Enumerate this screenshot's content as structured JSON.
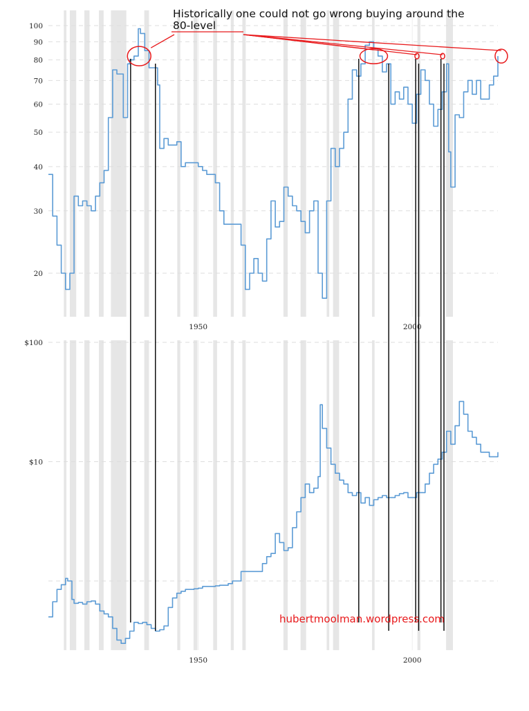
{
  "annotation": "Historically one could not go wrong buying around the 80-level",
  "watermark": "hubertmoolman.wordpress.com",
  "colors": {
    "line": "#5b9bd5",
    "recession": "#e6e6e6",
    "grid": "#dddddd",
    "annotation": "#e8191b",
    "marker": "#000000"
  },
  "recession_periods": [
    [
      1918.6,
      1919.2
    ],
    [
      1920.0,
      1921.5
    ],
    [
      1923.4,
      1924.6
    ],
    [
      1926.8,
      1927.9
    ],
    [
      1929.6,
      1933.2
    ],
    [
      1937.4,
      1938.5
    ],
    [
      1945.1,
      1945.8
    ],
    [
      1948.9,
      1949.8
    ],
    [
      1953.5,
      1954.4
    ],
    [
      1957.6,
      1958.3
    ],
    [
      1960.3,
      1961.1
    ],
    [
      1969.9,
      1970.9
    ],
    [
      1973.9,
      1975.2
    ],
    [
      1980.0,
      1980.6
    ],
    [
      1981.5,
      1982.9
    ],
    [
      1990.6,
      1991.2
    ],
    [
      2001.2,
      2001.9
    ],
    [
      2007.9,
      2009.5
    ]
  ],
  "buy_windows": [
    [
      1934.2,
      1940.0
    ],
    [
      1987.5,
      1994.5
    ],
    [
      2000.8,
      2001.5
    ],
    [
      2006.7,
      2007.4
    ]
  ],
  "chart_data": [
    {
      "type": "line",
      "scale": "log",
      "title": "",
      "xlabel": "",
      "ylabel": "",
      "xlim": [
        1915,
        2020
      ],
      "ylim": [
        16,
        108
      ],
      "y_ticks": [
        20,
        30,
        40,
        50,
        60,
        70,
        80,
        90,
        100
      ],
      "x_ticks": [
        1950,
        2000
      ],
      "series": [
        {
          "x": [
            1915.0,
            1916.0,
            1916.5,
            1917.0,
            1918.0,
            1919.0,
            1920.0,
            1921.0,
            1922.0,
            1923.0,
            1924.0,
            1925.0,
            1926.0,
            1927.0,
            1928.0,
            1929.0,
            1930.0,
            1931.0,
            1932.0,
            1932.5,
            1933.5,
            1934.0,
            1935.0,
            1936.0,
            1936.5,
            1937.5,
            1938.5,
            1939.5,
            1940.5,
            1941.0,
            1942.0,
            1943.0,
            1944.0,
            1945.0,
            1946.0,
            1947.0,
            1948.0,
            1949.0,
            1950.0,
            1951.0,
            1952.0,
            1953.0,
            1954.0,
            1955.0,
            1956.0,
            1957.0,
            1958.0,
            1959.0,
            1960.0,
            1961.0,
            1962.0,
            1963.0,
            1964.0,
            1965.0,
            1966.0,
            1967.0,
            1968.0,
            1969.0,
            1970.0,
            1971.0,
            1972.0,
            1973.0,
            1974.0,
            1975.0,
            1976.0,
            1977.0,
            1978.0,
            1979.0,
            1980.0,
            1981.0,
            1982.0,
            1983.0,
            1984.0,
            1985.0,
            1986.0,
            1987.0,
            1988.0,
            1989.0,
            1990.0,
            1991.0,
            1992.0,
            1993.0,
            1994.0,
            1995.0,
            1996.0,
            1997.0,
            1998.0,
            1999.0,
            2000.0,
            2001.0,
            2002.0,
            2003.0,
            2004.0,
            2005.0,
            2006.0,
            2007.0,
            2008.0,
            2008.5,
            2009.0,
            2010.0,
            2011.0,
            2012.0,
            2013.0,
            2014.0,
            2015.0,
            2016.0,
            2017.0,
            2018.0,
            2019.0,
            2020.0
          ],
          "y": [
            38,
            29,
            29,
            24,
            20,
            18,
            20,
            33,
            31,
            32,
            31,
            30,
            33,
            36,
            39,
            55,
            75,
            73,
            73,
            55,
            78,
            80,
            82,
            98,
            95,
            85,
            76,
            76,
            68,
            45,
            48,
            46,
            46,
            47,
            40,
            41,
            41,
            41,
            40,
            39,
            38,
            38,
            36,
            30,
            27.5,
            27.5,
            27.5,
            27.5,
            24,
            18,
            20,
            22,
            20,
            19,
            25,
            32,
            27,
            28,
            35,
            33,
            31,
            30,
            28,
            26,
            30,
            32,
            20,
            17,
            32,
            45,
            40,
            45,
            50,
            62,
            75,
            72,
            78,
            88,
            90,
            86,
            82,
            74,
            78,
            60,
            65,
            62,
            67,
            60,
            53,
            64,
            75,
            70,
            60,
            52,
            58,
            65,
            78,
            44,
            35,
            56,
            55,
            65,
            70,
            64,
            70,
            62,
            62,
            68,
            72,
            82
          ]
        }
      ]
    },
    {
      "type": "line",
      "scale": "log",
      "title": "",
      "xlabel": "",
      "ylabel": "",
      "xlim": [
        1915,
        2020
      ],
      "ylim": [
        0.28,
        100
      ],
      "y_ticks": [
        1,
        10,
        100
      ],
      "y_tick_labels": [
        "",
        "$10",
        "$100"
      ],
      "x_ticks": [
        1950,
        2000
      ],
      "series": [
        {
          "x": [
            1915.0,
            1916.0,
            1917.0,
            1918.0,
            1919.0,
            1919.5,
            1920.5,
            1921.0,
            1922.0,
            1923.0,
            1924.0,
            1925.0,
            1926.0,
            1927.0,
            1928.0,
            1929.0,
            1930.0,
            1931.0,
            1932.0,
            1933.0,
            1934.0,
            1935.0,
            1936.0,
            1937.0,
            1938.0,
            1939.0,
            1940.0,
            1941.0,
            1942.0,
            1943.0,
            1944.0,
            1945.0,
            1946.0,
            1947.0,
            1948.0,
            1949.0,
            1950.0,
            1951.0,
            1952.0,
            1953.0,
            1954.0,
            1955.0,
            1956.0,
            1957.0,
            1958.0,
            1959.0,
            1960.0,
            1961.0,
            1962.0,
            1963.0,
            1964.0,
            1965.0,
            1966.0,
            1967.0,
            1968.0,
            1969.0,
            1970.0,
            1971.0,
            1972.0,
            1973.0,
            1974.0,
            1975.0,
            1976.0,
            1977.0,
            1978.0,
            1978.5,
            1979.0,
            1980.0,
            1981.0,
            1982.0,
            1983.0,
            1984.0,
            1985.0,
            1986.0,
            1987.0,
            1988.0,
            1989.0,
            1990.0,
            1991.0,
            1992.0,
            1993.0,
            1994.0,
            1995.0,
            1996.0,
            1997.0,
            1998.0,
            1999.0,
            2000.0,
            2001.0,
            2002.0,
            2003.0,
            2004.0,
            2005.0,
            2006.0,
            2007.0,
            2008.0,
            2009.0,
            2010.0,
            2011.0,
            2012.0,
            2013.0,
            2014.0,
            2015.0,
            2016.0,
            2017.0,
            2018.0,
            2019.0,
            2020.0
          ],
          "y": [
            0.5,
            0.67,
            0.85,
            0.93,
            1.05,
            1.0,
            0.7,
            0.65,
            0.66,
            0.64,
            0.67,
            0.68,
            0.64,
            0.56,
            0.53,
            0.5,
            0.4,
            0.32,
            0.3,
            0.33,
            0.38,
            0.45,
            0.44,
            0.45,
            0.43,
            0.4,
            0.38,
            0.39,
            0.42,
            0.6,
            0.72,
            0.79,
            0.82,
            0.85,
            0.85,
            0.86,
            0.87,
            0.9,
            0.9,
            0.9,
            0.91,
            0.92,
            0.92,
            0.95,
            1.0,
            1.0,
            1.2,
            1.2,
            1.2,
            1.2,
            1.2,
            1.4,
            1.6,
            1.7,
            2.5,
            2.1,
            1.8,
            1.9,
            2.8,
            3.8,
            5.0,
            6.5,
            5.5,
            6.0,
            7.5,
            30,
            19,
            13,
            9.5,
            8.0,
            7.0,
            6.5,
            5.5,
            5.2,
            5.5,
            4.5,
            5.0,
            4.3,
            4.8,
            5.0,
            5.2,
            5.0,
            5.0,
            5.2,
            5.4,
            5.5,
            5.0,
            5.0,
            5.5,
            5.5,
            6.5,
            8.0,
            9.5,
            10.5,
            12,
            18,
            14,
            20,
            32,
            25,
            18,
            16,
            14,
            12,
            12,
            11,
            11,
            12
          ]
        }
      ]
    }
  ]
}
